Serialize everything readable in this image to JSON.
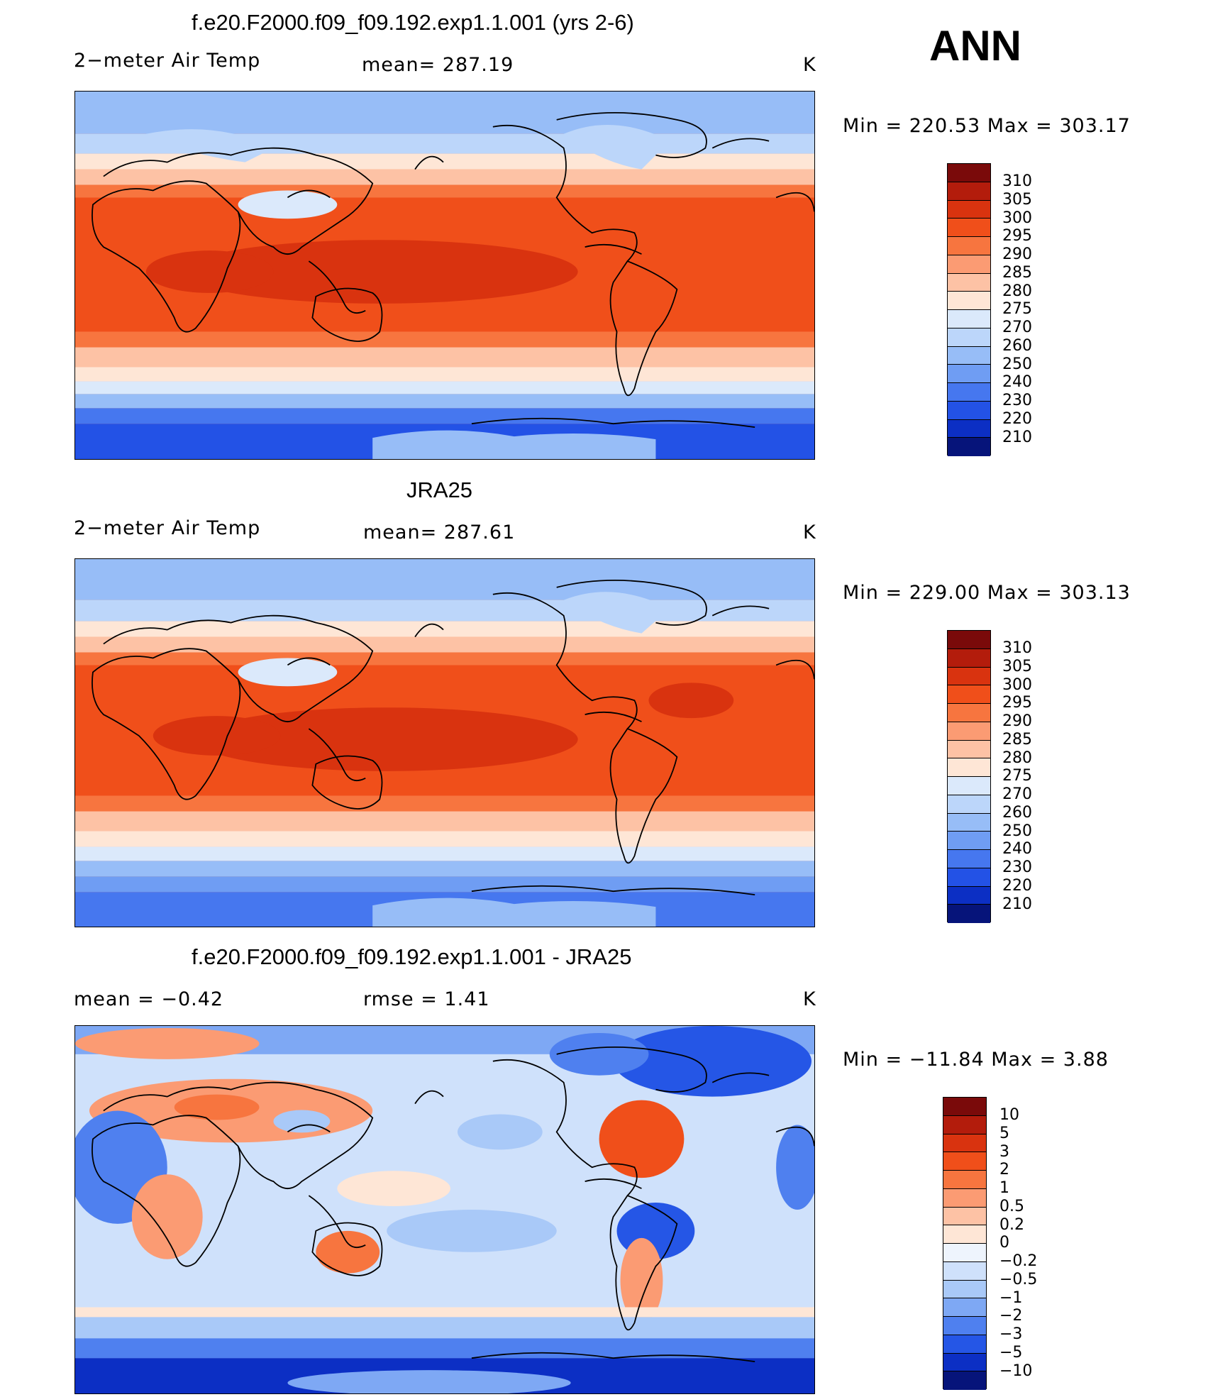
{
  "season_label": "ANN",
  "panels": [
    {
      "title": "f.e20.F2000.f09_f09.192.exp1.1.001 (yrs 2-6)",
      "left_label": "2−meter Air Temp",
      "center_label": "mean=  287.19",
      "units": "K",
      "minmax": "Min  =  220.53  Max  =  303.17",
      "colorbar_labels": [
        "310",
        "305",
        "300",
        "295",
        "290",
        "285",
        "280",
        "275",
        "270",
        "260",
        "250",
        "240",
        "230",
        "220",
        "210"
      ]
    },
    {
      "title": "JRA25",
      "left_label": "2−meter Air Temp",
      "center_label": "mean=  287.61",
      "units": "K",
      "minmax": "Min  =  229.00  Max  =  303.13",
      "colorbar_labels": [
        "310",
        "305",
        "300",
        "295",
        "290",
        "285",
        "280",
        "275",
        "270",
        "260",
        "250",
        "240",
        "230",
        "220",
        "210"
      ]
    },
    {
      "title": "f.e20.F2000.f09_f09.192.exp1.1.001 - JRA25",
      "left_label": "mean  =     −0.42",
      "center_label": "rmse  =      1.41",
      "units": "K",
      "minmax": "Min  =  −11.84  Max  =       3.88",
      "colorbar_labels": [
        "10",
        "5",
        "3",
        "2",
        "1",
        "0.5",
        "0.2",
        "0",
        "−0.2",
        "−0.5",
        "−1",
        "−2",
        "−3",
        "−5",
        "−10"
      ]
    }
  ],
  "colors": {
    "abs_scale": [
      "#7a0a0a",
      "#b31c0c",
      "#d9330f",
      "#f04f1a",
      "#f7753f",
      "#fb9b73",
      "#fdc2a5",
      "#fee6d6",
      "#dbe9fb",
      "#bcd6fa",
      "#97bdf7",
      "#6f9df3",
      "#4677ef",
      "#2352e6",
      "#0c2fc4",
      "#06147a"
    ],
    "diff_scale": [
      "#7a0a0a",
      "#b31c0c",
      "#d9330f",
      "#f04f1a",
      "#f7753f",
      "#fb9b73",
      "#fdc2a5",
      "#fee6d6",
      "#eef4fd",
      "#cfe1fb",
      "#a9c9f8",
      "#7ea8f4",
      "#4f80ef",
      "#2556e6",
      "#0c2fc4",
      "#06147a"
    ]
  }
}
